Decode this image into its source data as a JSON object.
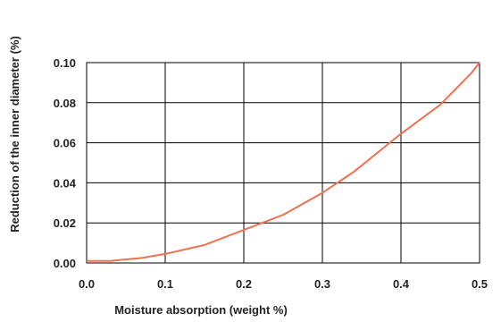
{
  "chart_data": {
    "type": "line",
    "xlabel": "Moisture absorption (weight %)",
    "ylabel": "Reduction of the inner diameter (%)",
    "xlim": [
      0,
      0.5
    ],
    "ylim": [
      0,
      0.1
    ],
    "x_ticks": [
      "0.0",
      "0.1",
      "0.2",
      "0.3",
      "0.4",
      "0.5"
    ],
    "y_ticks": [
      "0.00",
      "0.02",
      "0.04",
      "0.06",
      "0.08",
      "0.10"
    ],
    "grid": true,
    "series": [
      {
        "color": "#f07050",
        "x": [
          0.0,
          0.03,
          0.07,
          0.1,
          0.15,
          0.2,
          0.25,
          0.3,
          0.34,
          0.4,
          0.45,
          0.49,
          0.5
        ],
        "y": [
          0.001,
          0.001,
          0.0025,
          0.0045,
          0.009,
          0.0165,
          0.024,
          0.035,
          0.0455,
          0.0645,
          0.079,
          0.095,
          0.1
        ]
      }
    ]
  }
}
